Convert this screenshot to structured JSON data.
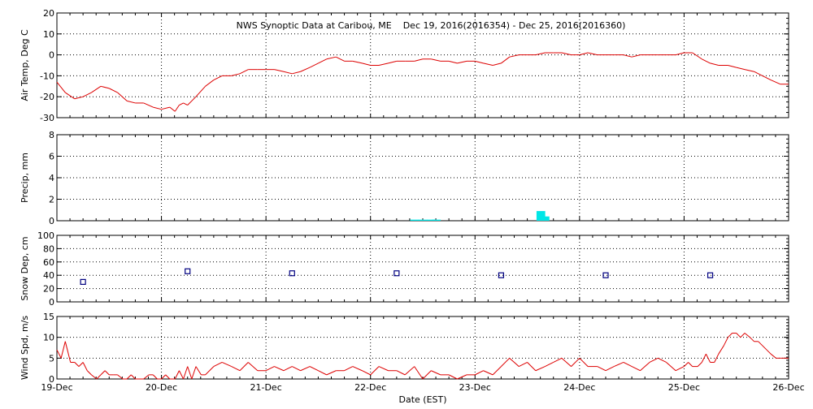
{
  "title": "NWS Synoptic Data at Caribou, ME    Dec 19, 2016(2016354) - Dec 25, 2016(2016360)",
  "xlabel": "Date (EST)",
  "x_ticks": [
    "19-Dec",
    "20-Dec",
    "21-Dec",
    "22-Dec",
    "23-Dec",
    "24-Dec",
    "25-Dec",
    "26-Dec"
  ],
  "colors": {
    "temp": "#dd0000",
    "wind": "#dd0000",
    "precip": "#00e6e6",
    "snow": "#000080",
    "frame": "#000000"
  },
  "chart_data": [
    {
      "type": "line",
      "ylabel": "Air Temp, Deg C",
      "ylim": [
        -30,
        20
      ],
      "y_ticks": [
        -30,
        -20,
        -10,
        0,
        10,
        20
      ],
      "xlim": [
        0,
        7
      ],
      "grid": true,
      "series": [
        {
          "x": [
            0,
            0.08,
            0.17,
            0.25,
            0.33,
            0.42,
            0.5,
            0.58,
            0.67,
            0.75,
            0.83,
            0.92,
            1.0,
            1.08,
            1.13,
            1.17,
            1.21,
            1.25,
            1.33,
            1.42,
            1.5,
            1.58,
            1.67,
            1.75,
            1.83,
            1.92,
            2.0,
            2.08,
            2.17,
            2.25,
            2.33,
            2.42,
            2.5,
            2.58,
            2.67,
            2.75,
            2.83,
            2.92,
            3.0,
            3.08,
            3.17,
            3.25,
            3.33,
            3.42,
            3.5,
            3.58,
            3.67,
            3.75,
            3.83,
            3.92,
            4.0,
            4.08,
            4.17,
            4.25,
            4.33,
            4.42,
            4.5,
            4.58,
            4.67,
            4.75,
            4.83,
            4.92,
            5.0,
            5.08,
            5.17,
            5.25,
            5.33,
            5.42,
            5.5,
            5.58,
            5.67,
            5.75,
            5.83,
            5.92,
            6.0,
            6.08,
            6.17,
            6.25,
            6.33,
            6.42,
            6.5,
            6.58,
            6.67,
            6.75,
            6.83,
            6.92,
            7.0
          ],
          "y": [
            -13,
            -18,
            -21,
            -20,
            -18,
            -15,
            -16,
            -18,
            -22,
            -23,
            -23,
            -25,
            -26,
            -25,
            -27,
            -24,
            -23,
            -24,
            -20,
            -15,
            -12,
            -10,
            -10,
            -9,
            -7,
            -7,
            -7,
            -7,
            -8,
            -9,
            -8,
            -6,
            -4,
            -2,
            -1,
            -3,
            -3,
            -4,
            -5,
            -5,
            -4,
            -3,
            -3,
            -3,
            -2,
            -2,
            -3,
            -3,
            -4,
            -3,
            -3,
            -4,
            -5,
            -4,
            -1,
            0,
            0,
            0,
            1,
            1,
            1,
            0,
            0,
            1,
            0,
            0,
            0,
            0,
            -1,
            0,
            0,
            0,
            0,
            0,
            1,
            1,
            -2,
            -4,
            -5,
            -5,
            -6,
            -7,
            -8,
            -10,
            -12,
            -14,
            -14
          ]
        }
      ]
    },
    {
      "type": "bar",
      "ylabel": "Precip, mm",
      "ylim": [
        0,
        8
      ],
      "y_ticks": [
        0,
        2,
        4,
        6,
        8
      ],
      "xlim": [
        0,
        7
      ],
      "grid": true,
      "bars": [
        {
          "x": 3.42,
          "value": 0.1
        },
        {
          "x": 3.5,
          "value": 0.1
        },
        {
          "x": 3.58,
          "value": 0.1
        },
        {
          "x": 3.63,
          "value": 0.1
        },
        {
          "x": 4.63,
          "value": 0.9
        },
        {
          "x": 4.67,
          "value": 0.4
        }
      ]
    },
    {
      "type": "scatter",
      "ylabel": "Snow Dep, cm",
      "ylim": [
        0,
        100
      ],
      "y_ticks": [
        0,
        20,
        40,
        60,
        80,
        100
      ],
      "xlim": [
        0,
        7
      ],
      "grid": true,
      "points": [
        {
          "x": 0.25,
          "y": 30
        },
        {
          "x": 1.25,
          "y": 46
        },
        {
          "x": 2.25,
          "y": 43
        },
        {
          "x": 3.25,
          "y": 43
        },
        {
          "x": 4.25,
          "y": 40
        },
        {
          "x": 5.25,
          "y": 40
        },
        {
          "x": 6.25,
          "y": 40
        }
      ]
    },
    {
      "type": "line",
      "ylabel": "Wind Spd, m/s",
      "ylim": [
        0,
        15
      ],
      "y_ticks": [
        0,
        5,
        10,
        15
      ],
      "xlim": [
        0,
        7
      ],
      "grid": true,
      "series": [
        {
          "x": [
            0,
            0.04,
            0.08,
            0.13,
            0.17,
            0.21,
            0.25,
            0.29,
            0.33,
            0.38,
            0.42,
            0.46,
            0.5,
            0.54,
            0.58,
            0.63,
            0.67,
            0.71,
            0.75,
            0.79,
            0.83,
            0.88,
            0.92,
            0.96,
            1.0,
            1.04,
            1.08,
            1.13,
            1.17,
            1.21,
            1.25,
            1.29,
            1.33,
            1.38,
            1.42,
            1.46,
            1.5,
            1.58,
            1.67,
            1.75,
            1.83,
            1.92,
            2.0,
            2.08,
            2.17,
            2.25,
            2.33,
            2.42,
            2.5,
            2.58,
            2.67,
            2.75,
            2.83,
            2.92,
            3.0,
            3.08,
            3.17,
            3.25,
            3.33,
            3.42,
            3.5,
            3.58,
            3.67,
            3.75,
            3.83,
            3.92,
            4.0,
            4.08,
            4.17,
            4.25,
            4.33,
            4.42,
            4.5,
            4.58,
            4.67,
            4.75,
            4.83,
            4.92,
            5.0,
            5.08,
            5.17,
            5.25,
            5.33,
            5.42,
            5.5,
            5.58,
            5.67,
            5.75,
            5.83,
            5.92,
            6.0,
            6.04,
            6.08,
            6.13,
            6.17,
            6.21,
            6.25,
            6.29,
            6.33,
            6.38,
            6.42,
            6.46,
            6.5,
            6.54,
            6.58,
            6.63,
            6.67,
            6.71,
            6.75,
            6.79,
            6.83,
            6.88,
            6.92,
            6.96,
            7.0
          ],
          "y": [
            7,
            5,
            9,
            4,
            4,
            3,
            4,
            2,
            1,
            0,
            1,
            2,
            1,
            1,
            1,
            0,
            0,
            1,
            0,
            0,
            0,
            1,
            1,
            0,
            0,
            1,
            0,
            0,
            2,
            0,
            3,
            0,
            3,
            1,
            1,
            2,
            3,
            4,
            3,
            2,
            4,
            2,
            2,
            3,
            2,
            3,
            2,
            3,
            2,
            1,
            2,
            2,
            3,
            2,
            1,
            3,
            2,
            2,
            1,
            3,
            0,
            2,
            1,
            1,
            0,
            1,
            1,
            2,
            1,
            3,
            5,
            3,
            4,
            2,
            3,
            4,
            5,
            3,
            5,
            3,
            3,
            2,
            3,
            4,
            3,
            2,
            4,
            5,
            4,
            2,
            3,
            4,
            3,
            3,
            4,
            6,
            4,
            4,
            6,
            8,
            10,
            11,
            11,
            10,
            11,
            10,
            9,
            9,
            8,
            7,
            6,
            5,
            5,
            5,
            5
          ]
        }
      ]
    }
  ]
}
